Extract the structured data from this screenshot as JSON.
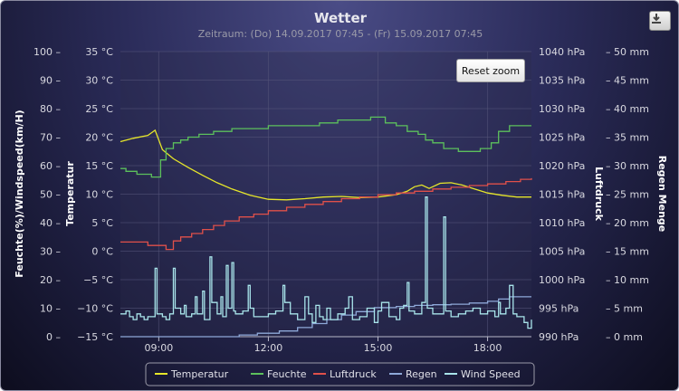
{
  "chart_data": {
    "type": "line",
    "title": "Wetter",
    "subtitle": "Zeitraum: (Do) 14.09.2017 07:45 - (Fr) 15.09.2017 07:45",
    "x_axis": {
      "range_hours": [
        7.95,
        19.2
      ],
      "tick_labels": [
        "09:00",
        "12:00",
        "15:00",
        "18:00"
      ],
      "tick_hours": [
        9,
        12,
        15,
        18
      ]
    },
    "y_axes": [
      {
        "id": "feuchte",
        "title": "Feuchte(%)/Windspeed(km/H)",
        "min": 0,
        "max": 100,
        "ticks": [
          "100 –",
          "90 –",
          "80 –",
          "70 –",
          "60 –",
          "50 –",
          "40 –",
          "30 –",
          "20 –",
          "10 –",
          "0 –"
        ]
      },
      {
        "id": "temp",
        "title": "Temperatur",
        "min": -15,
        "max": 35,
        "ticks": [
          "35 °C",
          "30 °C",
          "25 °C",
          "20 °C",
          "15 °C",
          "10 °C",
          "5 °C",
          "0 °C",
          "−5 °C",
          "−10 °C",
          "−15 °C"
        ]
      },
      {
        "id": "druck",
        "title": "Luftdruck",
        "min": 990,
        "max": 1040,
        "ticks": [
          "1040 hPa",
          "1035 hPa",
          "1030 hPa",
          "1025 hPa",
          "1020 hPa",
          "1015 hPa",
          "1010 hPa",
          "1005 hPa",
          "1000 hPa",
          "995 hPa",
          "990 hPa"
        ]
      },
      {
        "id": "regen",
        "title": "Regen Menge",
        "min": 0,
        "max": 50,
        "ticks": [
          "– 50 mm",
          "– 45 mm",
          "– 40 mm",
          "– 35 mm",
          "– 30 mm",
          "– 25 mm",
          "– 20 mm",
          "– 15 mm",
          "– 10 mm",
          "– 5 mm",
          "– 0 mm"
        ]
      }
    ],
    "series": [
      {
        "name": "Temperatur",
        "axis": "temp",
        "color": "#e6e62a",
        "step": false,
        "points": [
          [
            7.95,
            19.2
          ],
          [
            8.3,
            19.8
          ],
          [
            8.7,
            20.3
          ],
          [
            8.9,
            21.2
          ],
          [
            9.0,
            19.5
          ],
          [
            9.1,
            17.8
          ],
          [
            9.4,
            16.2
          ],
          [
            9.8,
            14.7
          ],
          [
            10.2,
            13.3
          ],
          [
            10.6,
            12.0
          ],
          [
            11.0,
            10.9
          ],
          [
            11.5,
            9.8
          ],
          [
            12.0,
            9.1
          ],
          [
            12.5,
            9.0
          ],
          [
            13.0,
            9.2
          ],
          [
            13.5,
            9.5
          ],
          [
            14.0,
            9.6
          ],
          [
            14.5,
            9.4
          ],
          [
            15.0,
            9.5
          ],
          [
            15.5,
            9.9
          ],
          [
            15.8,
            10.5
          ],
          [
            16.0,
            11.3
          ],
          [
            16.2,
            11.6
          ],
          [
            16.4,
            11.0
          ],
          [
            16.7,
            11.9
          ],
          [
            17.0,
            12.0
          ],
          [
            17.3,
            11.6
          ],
          [
            17.6,
            11.0
          ],
          [
            18.0,
            10.2
          ],
          [
            18.4,
            9.8
          ],
          [
            18.8,
            9.5
          ],
          [
            19.2,
            9.5
          ]
        ]
      },
      {
        "name": "Feuchte",
        "axis": "feuchte",
        "color": "#5cc05c",
        "step": true,
        "points": [
          [
            7.95,
            59
          ],
          [
            8.1,
            58
          ],
          [
            8.4,
            57
          ],
          [
            8.8,
            56
          ],
          [
            9.05,
            62
          ],
          [
            9.2,
            66
          ],
          [
            9.4,
            68
          ],
          [
            9.6,
            69
          ],
          [
            9.8,
            70
          ],
          [
            10.1,
            71
          ],
          [
            10.5,
            72
          ],
          [
            11.0,
            73
          ],
          [
            11.5,
            73
          ],
          [
            12.0,
            74
          ],
          [
            12.5,
            74
          ],
          [
            13.0,
            74
          ],
          [
            13.4,
            75
          ],
          [
            13.9,
            76
          ],
          [
            14.3,
            76
          ],
          [
            14.8,
            77
          ],
          [
            15.2,
            75
          ],
          [
            15.5,
            74
          ],
          [
            15.8,
            72
          ],
          [
            16.1,
            71
          ],
          [
            16.3,
            69
          ],
          [
            16.5,
            68
          ],
          [
            16.8,
            66
          ],
          [
            17.2,
            65
          ],
          [
            17.5,
            65
          ],
          [
            17.8,
            66
          ],
          [
            18.1,
            68
          ],
          [
            18.3,
            72
          ],
          [
            18.6,
            74
          ],
          [
            18.8,
            74
          ],
          [
            19.2,
            74
          ]
        ]
      },
      {
        "name": "Luftdruck",
        "axis": "druck",
        "color": "#e0504a",
        "step": true,
        "points": [
          [
            7.95,
            1006.6
          ],
          [
            8.7,
            1006.0
          ],
          [
            9.2,
            1005.3
          ],
          [
            9.4,
            1006.8
          ],
          [
            9.6,
            1007.5
          ],
          [
            9.9,
            1008.1
          ],
          [
            10.2,
            1008.8
          ],
          [
            10.5,
            1009.5
          ],
          [
            10.8,
            1010.3
          ],
          [
            11.2,
            1011.0
          ],
          [
            11.6,
            1011.5
          ],
          [
            12.0,
            1012.1
          ],
          [
            12.5,
            1012.7
          ],
          [
            13.0,
            1013.2
          ],
          [
            13.5,
            1013.7
          ],
          [
            14.0,
            1014.2
          ],
          [
            14.5,
            1014.5
          ],
          [
            15.0,
            1014.9
          ],
          [
            15.5,
            1015.2
          ],
          [
            16.0,
            1015.5
          ],
          [
            16.5,
            1015.9
          ],
          [
            17.0,
            1016.2
          ],
          [
            17.5,
            1016.5
          ],
          [
            18.0,
            1016.8
          ],
          [
            18.5,
            1017.2
          ],
          [
            18.9,
            1017.6
          ],
          [
            19.2,
            1017.8
          ]
        ]
      },
      {
        "name": "Regen",
        "axis": "regen",
        "color": "#8ea8d8",
        "step": true,
        "points": [
          [
            7.95,
            0
          ],
          [
            10.8,
            0
          ],
          [
            11.2,
            0.3
          ],
          [
            11.7,
            0.6
          ],
          [
            12.3,
            1.0
          ],
          [
            12.8,
            1.6
          ],
          [
            13.2,
            2.3
          ],
          [
            13.6,
            3.0
          ],
          [
            14.0,
            3.8
          ],
          [
            14.4,
            4.4
          ],
          [
            14.9,
            5.1
          ],
          [
            15.5,
            5.3
          ],
          [
            16.0,
            5.5
          ],
          [
            16.5,
            5.6
          ],
          [
            17.0,
            5.7
          ],
          [
            17.5,
            5.9
          ],
          [
            18.0,
            6.2
          ],
          [
            18.3,
            6.6
          ],
          [
            18.6,
            7.0
          ],
          [
            19.2,
            7.0
          ]
        ]
      },
      {
        "name": "Wind Speed",
        "axis": "feuchte",
        "color": "#a8e4ea",
        "step": true,
        "points": [
          [
            7.95,
            8
          ],
          [
            8.1,
            9
          ],
          [
            8.2,
            7
          ],
          [
            8.3,
            6
          ],
          [
            8.4,
            8
          ],
          [
            8.5,
            7
          ],
          [
            8.6,
            6
          ],
          [
            8.7,
            7
          ],
          [
            8.9,
            24
          ],
          [
            8.95,
            8
          ],
          [
            9.1,
            7
          ],
          [
            9.2,
            6
          ],
          [
            9.3,
            8
          ],
          [
            9.4,
            24
          ],
          [
            9.45,
            10
          ],
          [
            9.6,
            8
          ],
          [
            9.7,
            11
          ],
          [
            9.75,
            7
          ],
          [
            9.9,
            8
          ],
          [
            10.0,
            14
          ],
          [
            10.05,
            8
          ],
          [
            10.2,
            16
          ],
          [
            10.25,
            6
          ],
          [
            10.4,
            28
          ],
          [
            10.45,
            12
          ],
          [
            10.6,
            8
          ],
          [
            10.7,
            14
          ],
          [
            10.75,
            7
          ],
          [
            10.85,
            25
          ],
          [
            10.9,
            10
          ],
          [
            11.0,
            26
          ],
          [
            11.05,
            9
          ],
          [
            11.1,
            8
          ],
          [
            11.3,
            9
          ],
          [
            11.45,
            18
          ],
          [
            11.5,
            10
          ],
          [
            11.6,
            7
          ],
          [
            11.8,
            7
          ],
          [
            12.0,
            8
          ],
          [
            12.2,
            9
          ],
          [
            12.4,
            18
          ],
          [
            12.45,
            12
          ],
          [
            12.6,
            8
          ],
          [
            12.8,
            6
          ],
          [
            13.0,
            14
          ],
          [
            13.1,
            8
          ],
          [
            13.2,
            5
          ],
          [
            13.3,
            11
          ],
          [
            13.4,
            7
          ],
          [
            13.5,
            6
          ],
          [
            13.6,
            10
          ],
          [
            13.7,
            6
          ],
          [
            13.9,
            8
          ],
          [
            14.1,
            10
          ],
          [
            14.2,
            14
          ],
          [
            14.3,
            6
          ],
          [
            14.5,
            7
          ],
          [
            14.7,
            10
          ],
          [
            14.9,
            5
          ],
          [
            15.0,
            9
          ],
          [
            15.1,
            12
          ],
          [
            15.3,
            7
          ],
          [
            15.5,
            6
          ],
          [
            15.6,
            10
          ],
          [
            15.7,
            11
          ],
          [
            15.8,
            19
          ],
          [
            15.85,
            9
          ],
          [
            16.0,
            8
          ],
          [
            16.2,
            12
          ],
          [
            16.3,
            49
          ],
          [
            16.35,
            10
          ],
          [
            16.5,
            8
          ],
          [
            16.7,
            8
          ],
          [
            16.8,
            42
          ],
          [
            16.85,
            9
          ],
          [
            17.0,
            7
          ],
          [
            17.2,
            8
          ],
          [
            17.4,
            9
          ],
          [
            17.6,
            10
          ],
          [
            17.8,
            8
          ],
          [
            18.0,
            9
          ],
          [
            18.2,
            7
          ],
          [
            18.3,
            12
          ],
          [
            18.35,
            8
          ],
          [
            18.5,
            10
          ],
          [
            18.6,
            18
          ],
          [
            18.7,
            8
          ],
          [
            18.8,
            7
          ],
          [
            19.0,
            5
          ],
          [
            19.1,
            3
          ],
          [
            19.2,
            6
          ]
        ]
      }
    ],
    "legend": [
      "Temperatur",
      "Feuchte",
      "Luftdruck",
      "Regen",
      "Wind Speed"
    ],
    "legend_position": "bottom-center",
    "grid": true
  },
  "controls": {
    "reset_zoom": "Reset zoom"
  },
  "icons": {
    "export": "download-icon"
  }
}
